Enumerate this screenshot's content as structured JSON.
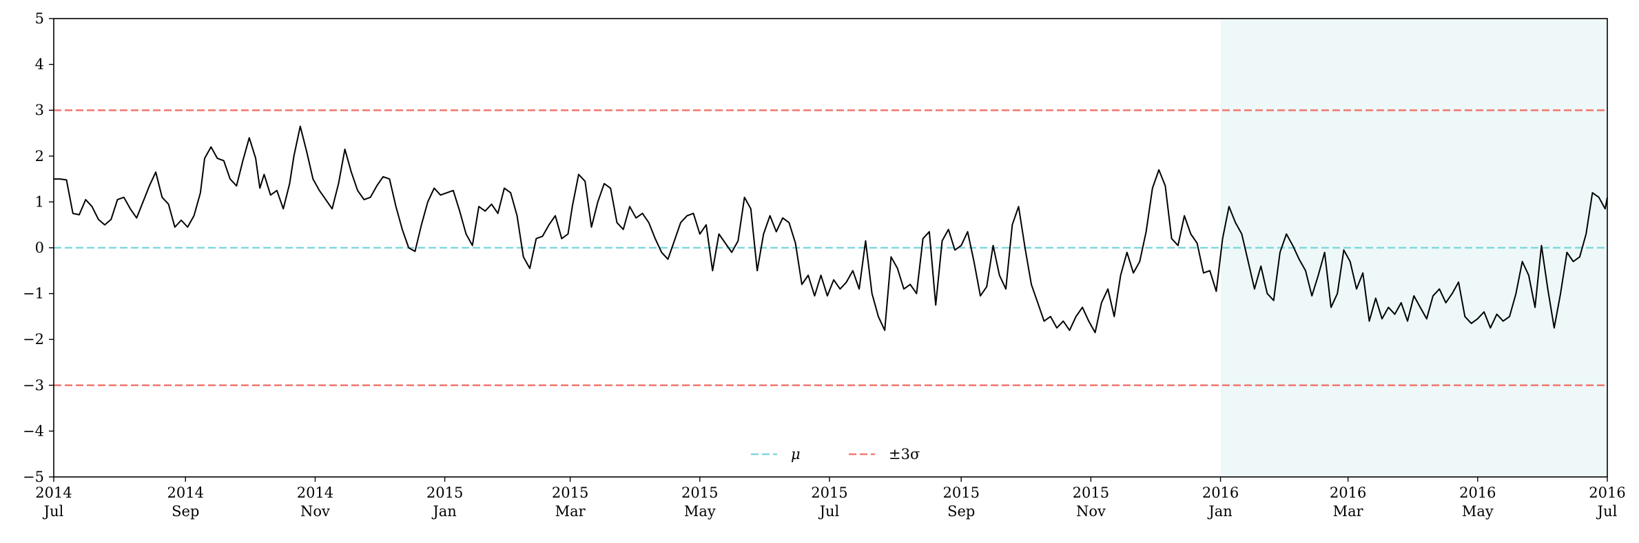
{
  "chart_data": {
    "type": "line",
    "title": "",
    "xlabel": "",
    "ylabel": "",
    "ylim": [
      -5,
      5
    ],
    "xlim": [
      "2014-07-01",
      "2016-07-01"
    ],
    "yticks": [
      -5,
      -4,
      -3,
      -2,
      -1,
      0,
      1,
      2,
      3,
      4,
      5
    ],
    "ytick_labels": [
      "−5",
      "−4",
      "−3",
      "−2",
      "−1",
      "0",
      "1",
      "2",
      "3",
      "4",
      "5"
    ],
    "xticks": [
      {
        "date": "2014-07-01",
        "year": "2014",
        "month": "Jul"
      },
      {
        "date": "2014-09-01",
        "year": "2014",
        "month": "Sep"
      },
      {
        "date": "2014-11-01",
        "year": "2014",
        "month": "Nov"
      },
      {
        "date": "2015-01-01",
        "year": "2015",
        "month": "Jan"
      },
      {
        "date": "2015-03-01",
        "year": "2015",
        "month": "Mar"
      },
      {
        "date": "2015-05-01",
        "year": "2015",
        "month": "May"
      },
      {
        "date": "2015-07-01",
        "year": "2015",
        "month": "Jul"
      },
      {
        "date": "2015-09-01",
        "year": "2015",
        "month": "Sep"
      },
      {
        "date": "2015-11-01",
        "year": "2015",
        "month": "Nov"
      },
      {
        "date": "2016-01-01",
        "year": "2016",
        "month": "Jan"
      },
      {
        "date": "2016-03-01",
        "year": "2016",
        "month": "Mar"
      },
      {
        "date": "2016-05-01",
        "year": "2016",
        "month": "May"
      },
      {
        "date": "2016-07-01",
        "year": "2016",
        "month": "Jul"
      }
    ],
    "shaded_region": {
      "start": "2016-01-01",
      "end": "2016-07-01",
      "color": "#eef8f8"
    },
    "reference_lines": [
      {
        "label": "μ",
        "values": [
          0
        ],
        "color": "#7fd8dd",
        "style": "dashed"
      },
      {
        "label": "±3σ",
        "values": [
          3,
          -3
        ],
        "color": "#f07a73",
        "style": "dashed"
      }
    ],
    "legend": {
      "placement": "bottom-center",
      "entries": [
        "μ",
        "±3σ"
      ]
    },
    "grid": false,
    "series": [
      {
        "color": "#000000",
        "points": [
          [
            "2014-07-01",
            1.5
          ],
          [
            "2014-07-04",
            1.5
          ],
          [
            "2014-07-07",
            1.48
          ],
          [
            "2014-07-10",
            0.75
          ],
          [
            "2014-07-13",
            0.72
          ],
          [
            "2014-07-16",
            1.05
          ],
          [
            "2014-07-19",
            0.9
          ],
          [
            "2014-07-22",
            0.62
          ],
          [
            "2014-07-25",
            0.5
          ],
          [
            "2014-07-28",
            0.62
          ],
          [
            "2014-07-31",
            1.05
          ],
          [
            "2014-08-03",
            1.1
          ],
          [
            "2014-08-06",
            0.85
          ],
          [
            "2014-08-09",
            0.65
          ],
          [
            "2014-08-12",
            1.0
          ],
          [
            "2014-08-15",
            1.35
          ],
          [
            "2014-08-18",
            1.65
          ],
          [
            "2014-08-21",
            1.1
          ],
          [
            "2014-08-24",
            0.95
          ],
          [
            "2014-08-27",
            0.45
          ],
          [
            "2014-08-30",
            0.6
          ],
          [
            "2014-09-02",
            0.45
          ],
          [
            "2014-09-05",
            0.7
          ],
          [
            "2014-09-08",
            1.2
          ],
          [
            "2014-09-10",
            1.95
          ],
          [
            "2014-09-13",
            2.2
          ],
          [
            "2014-09-16",
            1.95
          ],
          [
            "2014-09-19",
            1.9
          ],
          [
            "2014-09-22",
            1.5
          ],
          [
            "2014-09-25",
            1.35
          ],
          [
            "2014-09-28",
            1.9
          ],
          [
            "2014-10-01",
            2.4
          ],
          [
            "2014-10-04",
            1.95
          ],
          [
            "2014-10-06",
            1.3
          ],
          [
            "2014-10-08",
            1.6
          ],
          [
            "2014-10-11",
            1.15
          ],
          [
            "2014-10-14",
            1.25
          ],
          [
            "2014-10-17",
            0.85
          ],
          [
            "2014-10-20",
            1.4
          ],
          [
            "2014-10-22",
            2.0
          ],
          [
            "2014-10-25",
            2.65
          ],
          [
            "2014-10-28",
            2.1
          ],
          [
            "2014-10-31",
            1.5
          ],
          [
            "2014-11-03",
            1.25
          ],
          [
            "2014-11-06",
            1.05
          ],
          [
            "2014-11-09",
            0.85
          ],
          [
            "2014-11-12",
            1.4
          ],
          [
            "2014-11-15",
            2.15
          ],
          [
            "2014-11-18",
            1.65
          ],
          [
            "2014-11-21",
            1.25
          ],
          [
            "2014-11-24",
            1.05
          ],
          [
            "2014-11-27",
            1.1
          ],
          [
            "2014-11-30",
            1.35
          ],
          [
            "2014-12-03",
            1.55
          ],
          [
            "2014-12-06",
            1.5
          ],
          [
            "2014-12-09",
            0.9
          ],
          [
            "2014-12-12",
            0.4
          ],
          [
            "2014-12-15",
            0.0
          ],
          [
            "2014-12-18",
            -0.08
          ],
          [
            "2014-12-21",
            0.5
          ],
          [
            "2014-12-24",
            1.0
          ],
          [
            "2014-12-27",
            1.3
          ],
          [
            "2014-12-30",
            1.15
          ],
          [
            "2015-01-02",
            1.2
          ],
          [
            "2015-01-05",
            1.25
          ],
          [
            "2015-01-08",
            0.8
          ],
          [
            "2015-01-11",
            0.3
          ],
          [
            "2015-01-14",
            0.05
          ],
          [
            "2015-01-17",
            0.9
          ],
          [
            "2015-01-20",
            0.8
          ],
          [
            "2015-01-23",
            0.95
          ],
          [
            "2015-01-26",
            0.75
          ],
          [
            "2015-01-29",
            1.3
          ],
          [
            "2015-02-01",
            1.2
          ],
          [
            "2015-02-04",
            0.7
          ],
          [
            "2015-02-07",
            -0.2
          ],
          [
            "2015-02-10",
            -0.45
          ],
          [
            "2015-02-13",
            0.2
          ],
          [
            "2015-02-16",
            0.25
          ],
          [
            "2015-02-19",
            0.5
          ],
          [
            "2015-02-22",
            0.7
          ],
          [
            "2015-02-25",
            0.2
          ],
          [
            "2015-02-28",
            0.3
          ],
          [
            "2015-03-02",
            0.9
          ],
          [
            "2015-03-05",
            1.6
          ],
          [
            "2015-03-08",
            1.45
          ],
          [
            "2015-03-11",
            0.45
          ],
          [
            "2015-03-14",
            1.0
          ],
          [
            "2015-03-17",
            1.4
          ],
          [
            "2015-03-20",
            1.3
          ],
          [
            "2015-03-23",
            0.55
          ],
          [
            "2015-03-26",
            0.4
          ],
          [
            "2015-03-29",
            0.9
          ],
          [
            "2015-04-01",
            0.65
          ],
          [
            "2015-04-04",
            0.75
          ],
          [
            "2015-04-07",
            0.55
          ],
          [
            "2015-04-10",
            0.2
          ],
          [
            "2015-04-13",
            -0.1
          ],
          [
            "2015-04-16",
            -0.25
          ],
          [
            "2015-04-19",
            0.15
          ],
          [
            "2015-04-22",
            0.55
          ],
          [
            "2015-04-25",
            0.7
          ],
          [
            "2015-04-28",
            0.75
          ],
          [
            "2015-05-01",
            0.3
          ],
          [
            "2015-05-04",
            0.5
          ],
          [
            "2015-05-07",
            -0.5
          ],
          [
            "2015-05-10",
            0.3
          ],
          [
            "2015-05-13",
            0.1
          ],
          [
            "2015-05-16",
            -0.1
          ],
          [
            "2015-05-19",
            0.15
          ],
          [
            "2015-05-22",
            1.1
          ],
          [
            "2015-05-25",
            0.85
          ],
          [
            "2015-05-28",
            -0.5
          ],
          [
            "2015-05-31",
            0.3
          ],
          [
            "2015-06-03",
            0.7
          ],
          [
            "2015-06-06",
            0.35
          ],
          [
            "2015-06-09",
            0.65
          ],
          [
            "2015-06-12",
            0.55
          ],
          [
            "2015-06-15",
            0.1
          ],
          [
            "2015-06-18",
            -0.8
          ],
          [
            "2015-06-21",
            -0.6
          ],
          [
            "2015-06-24",
            -1.05
          ],
          [
            "2015-06-27",
            -0.6
          ],
          [
            "2015-06-30",
            -1.05
          ],
          [
            "2015-07-03",
            -0.7
          ],
          [
            "2015-07-06",
            -0.9
          ],
          [
            "2015-07-09",
            -0.75
          ],
          [
            "2015-07-12",
            -0.5
          ],
          [
            "2015-07-15",
            -0.9
          ],
          [
            "2015-07-18",
            0.15
          ],
          [
            "2015-07-21",
            -1.0
          ],
          [
            "2015-07-24",
            -1.5
          ],
          [
            "2015-07-27",
            -1.8
          ],
          [
            "2015-07-30",
            -0.2
          ],
          [
            "2015-08-02",
            -0.45
          ],
          [
            "2015-08-05",
            -0.9
          ],
          [
            "2015-08-08",
            -0.8
          ],
          [
            "2015-08-11",
            -1.0
          ],
          [
            "2015-08-14",
            0.2
          ],
          [
            "2015-08-17",
            0.35
          ],
          [
            "2015-08-20",
            -1.25
          ],
          [
            "2015-08-23",
            0.15
          ],
          [
            "2015-08-26",
            0.4
          ],
          [
            "2015-08-29",
            -0.05
          ],
          [
            "2015-09-01",
            0.05
          ],
          [
            "2015-09-04",
            0.35
          ],
          [
            "2015-09-07",
            -0.3
          ],
          [
            "2015-09-10",
            -1.05
          ],
          [
            "2015-09-13",
            -0.85
          ],
          [
            "2015-09-16",
            0.05
          ],
          [
            "2015-09-19",
            -0.6
          ],
          [
            "2015-09-22",
            -0.9
          ],
          [
            "2015-09-25",
            0.5
          ],
          [
            "2015-09-28",
            0.9
          ],
          [
            "2015-10-01",
            0.0
          ],
          [
            "2015-10-04",
            -0.8
          ],
          [
            "2015-10-07",
            -1.2
          ],
          [
            "2015-10-10",
            -1.6
          ],
          [
            "2015-10-13",
            -1.5
          ],
          [
            "2015-10-16",
            -1.75
          ],
          [
            "2015-10-19",
            -1.6
          ],
          [
            "2015-10-22",
            -1.8
          ],
          [
            "2015-10-25",
            -1.5
          ],
          [
            "2015-10-28",
            -1.3
          ],
          [
            "2015-10-31",
            -1.6
          ],
          [
            "2015-11-03",
            -1.85
          ],
          [
            "2015-11-06",
            -1.2
          ],
          [
            "2015-11-09",
            -0.9
          ],
          [
            "2015-11-12",
            -1.5
          ],
          [
            "2015-11-15",
            -0.6
          ],
          [
            "2015-11-18",
            -0.1
          ],
          [
            "2015-11-21",
            -0.55
          ],
          [
            "2015-11-24",
            -0.3
          ],
          [
            "2015-11-27",
            0.35
          ],
          [
            "2015-11-30",
            1.3
          ],
          [
            "2015-12-03",
            1.7
          ],
          [
            "2015-12-06",
            1.35
          ],
          [
            "2015-12-09",
            0.2
          ],
          [
            "2015-12-12",
            0.05
          ],
          [
            "2015-12-15",
            0.7
          ],
          [
            "2015-12-18",
            0.3
          ],
          [
            "2015-12-21",
            0.1
          ],
          [
            "2015-12-24",
            -0.55
          ],
          [
            "2015-12-27",
            -0.5
          ],
          [
            "2015-12-30",
            -0.95
          ],
          [
            "2016-01-02",
            0.2
          ],
          [
            "2016-01-05",
            0.9
          ],
          [
            "2016-01-08",
            0.55
          ],
          [
            "2016-01-11",
            0.3
          ],
          [
            "2016-01-14",
            -0.3
          ],
          [
            "2016-01-17",
            -0.9
          ],
          [
            "2016-01-20",
            -0.4
          ],
          [
            "2016-01-23",
            -1.0
          ],
          [
            "2016-01-26",
            -1.15
          ],
          [
            "2016-01-29",
            -0.1
          ],
          [
            "2016-02-01",
            0.3
          ],
          [
            "2016-02-04",
            0.05
          ],
          [
            "2016-02-07",
            -0.25
          ],
          [
            "2016-02-10",
            -0.5
          ],
          [
            "2016-02-13",
            -1.05
          ],
          [
            "2016-02-16",
            -0.6
          ],
          [
            "2016-02-19",
            -0.1
          ],
          [
            "2016-02-22",
            -1.3
          ],
          [
            "2016-02-25",
            -1.0
          ],
          [
            "2016-02-28",
            -0.05
          ],
          [
            "2016-03-02",
            -0.3
          ],
          [
            "2016-03-05",
            -0.9
          ],
          [
            "2016-03-08",
            -0.55
          ],
          [
            "2016-03-11",
            -1.6
          ],
          [
            "2016-03-14",
            -1.1
          ],
          [
            "2016-03-17",
            -1.55
          ],
          [
            "2016-03-20",
            -1.3
          ],
          [
            "2016-03-23",
            -1.45
          ],
          [
            "2016-03-26",
            -1.2
          ],
          [
            "2016-03-29",
            -1.6
          ],
          [
            "2016-04-01",
            -1.05
          ],
          [
            "2016-04-04",
            -1.3
          ],
          [
            "2016-04-07",
            -1.55
          ],
          [
            "2016-04-10",
            -1.05
          ],
          [
            "2016-04-13",
            -0.9
          ],
          [
            "2016-04-16",
            -1.2
          ],
          [
            "2016-04-19",
            -1.0
          ],
          [
            "2016-04-22",
            -0.75
          ],
          [
            "2016-04-25",
            -1.5
          ],
          [
            "2016-04-28",
            -1.65
          ],
          [
            "2016-05-01",
            -1.55
          ],
          [
            "2016-05-04",
            -1.4
          ],
          [
            "2016-05-07",
            -1.75
          ],
          [
            "2016-05-10",
            -1.45
          ],
          [
            "2016-05-13",
            -1.6
          ],
          [
            "2016-05-16",
            -1.5
          ],
          [
            "2016-05-19",
            -1.0
          ],
          [
            "2016-05-22",
            -0.3
          ],
          [
            "2016-05-25",
            -0.6
          ],
          [
            "2016-05-28",
            -1.3
          ],
          [
            "2016-05-31",
            0.05
          ],
          [
            "2016-06-03",
            -0.9
          ],
          [
            "2016-06-06",
            -1.75
          ],
          [
            "2016-06-09",
            -1.0
          ],
          [
            "2016-06-12",
            -0.1
          ],
          [
            "2016-06-15",
            -0.3
          ],
          [
            "2016-06-18",
            -0.2
          ],
          [
            "2016-06-21",
            0.3
          ],
          [
            "2016-06-24",
            1.2
          ],
          [
            "2016-06-27",
            1.1
          ],
          [
            "2016-06-30",
            0.85
          ],
          [
            "2016-07-01",
            1.1
          ]
        ]
      }
    ]
  }
}
